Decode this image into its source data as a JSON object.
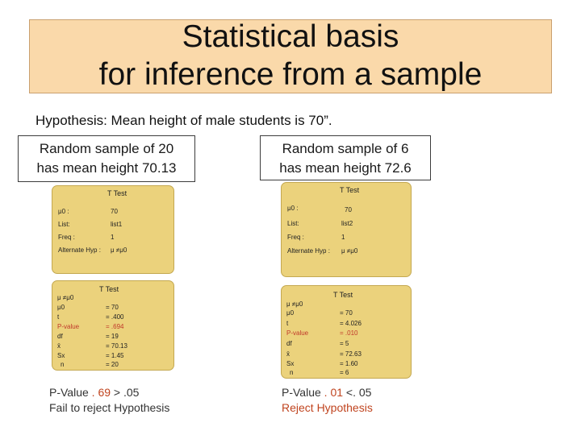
{
  "slide": {
    "title_line1": "Statistical basis",
    "title_line2": "for inference from a sample",
    "hypothesis": "Hypothesis: Mean height of male students is 70”."
  },
  "left": {
    "sample_line1": "Random sample of 20",
    "sample_line2": "has mean height 70.13",
    "input_panel": {
      "header": "T Test",
      "rows": [
        {
          "label": "μ0 :",
          "value": "70"
        },
        {
          "label": "List:",
          "value": "list1"
        },
        {
          "label": "Freq :",
          "value": "1"
        },
        {
          "label": "Alternate Hyp :",
          "value": "μ ≠μ0"
        }
      ]
    },
    "output_panel": {
      "header": "T Test",
      "subheader": "μ ≠μ0",
      "rows": [
        {
          "label": "μ0",
          "value": "= 70"
        },
        {
          "label": "t",
          "value": "= .400"
        },
        {
          "label": "P-value",
          "value": "= .694"
        },
        {
          "label": "df",
          "value": "= 19"
        },
        {
          "label": "x̄",
          "value": "= 70.13"
        },
        {
          "label": "Sx",
          "value": "= 1.45"
        },
        {
          "label": "n",
          "value": "= 20"
        }
      ]
    },
    "result_pre": "P-Value ",
    "result_p": ". 69",
    "result_post": " > .05",
    "verdict": "Fail to reject Hypothesis"
  },
  "right": {
    "sample_line1": "Random sample of 6",
    "sample_line2": "has mean height 72.6",
    "input_panel": {
      "header": "T Test",
      "rows": [
        {
          "label": "μ0 :",
          "value": "70"
        },
        {
          "label": "List:",
          "value": "list2"
        },
        {
          "label": "Freq :",
          "value": "1"
        },
        {
          "label": "Alternate Hyp :",
          "value": "μ ≠μ0"
        }
      ]
    },
    "output_panel": {
      "header": "T Test",
      "subheader": "μ ≠μ0",
      "rows": [
        {
          "label": "μ0",
          "value": "= 70"
        },
        {
          "label": "t",
          "value": "= 4.026"
        },
        {
          "label": "P-value",
          "value": "= .010"
        },
        {
          "label": "df",
          "value": "= 5"
        },
        {
          "label": "x̄",
          "value": "= 72.63"
        },
        {
          "label": "Sx",
          "value": "= 1.60"
        },
        {
          "label": "n",
          "value": "= 6"
        }
      ]
    },
    "result_pre": "P-Value ",
    "result_p": ". 01",
    "result_post": " <. 05",
    "verdict": "Reject Hypothesis"
  },
  "colors": {
    "title_bg": "#fad9aa",
    "panel_bg": "#ebd27c",
    "highlight": "#c0392b"
  }
}
